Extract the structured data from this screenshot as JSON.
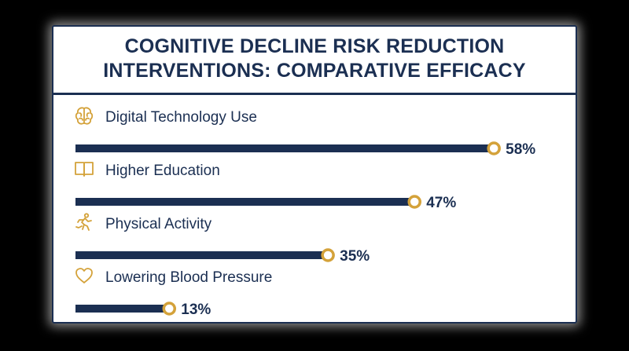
{
  "chart_data": {
    "type": "bar",
    "orientation": "horizontal",
    "title_lines": [
      "COGNITIVE DECLINE RISK REDUCTION",
      "INTERVENTIONS: COMPARATIVE EFFICACY"
    ],
    "categories": [
      "Digital Technology Use",
      "Higher Education",
      "Physical Activity",
      "Lowering Blood Pressure"
    ],
    "values": [
      58,
      47,
      35,
      13
    ],
    "value_labels": [
      "58%",
      "47%",
      "35%",
      "13%"
    ],
    "icons": [
      "brain-icon",
      "book-icon",
      "running-person-icon",
      "heart-icon"
    ],
    "xlim": [
      0,
      60
    ],
    "grid": false,
    "legend": "none",
    "colors": {
      "bar": "#1b2f52",
      "marker": "#d4a23a",
      "icon": "#d4a23a",
      "text": "#1b2f52"
    }
  }
}
